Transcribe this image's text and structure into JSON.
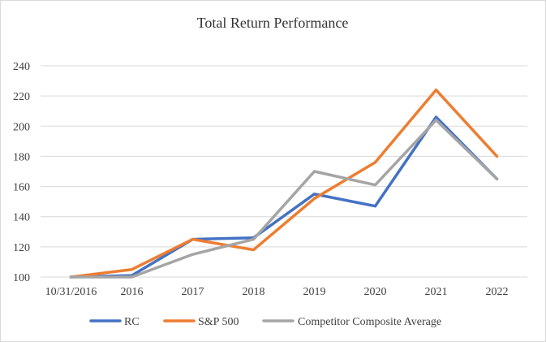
{
  "chart_data": {
    "type": "line",
    "title": "Total Return Performance",
    "xlabel": "",
    "ylabel": "",
    "categories": [
      "10/31/2016",
      "2016",
      "2017",
      "2018",
      "2019",
      "2020",
      "2021",
      "2022"
    ],
    "ylim": [
      100,
      240
    ],
    "yticks": [
      100,
      120,
      140,
      160,
      180,
      200,
      220,
      240
    ],
    "grid": true,
    "legend_position": "bottom",
    "series": [
      {
        "name": "RC",
        "color": "#4472c4",
        "values": [
          100,
          101,
          125,
          126,
          155,
          147,
          206,
          165
        ]
      },
      {
        "name": "S&P 500",
        "color": "#ed7d31",
        "values": [
          100,
          105,
          125,
          118,
          152,
          176,
          224,
          180
        ]
      },
      {
        "name": "Competitor Composite Average",
        "color": "#a5a5a5",
        "values": [
          100,
          100,
          115,
          125,
          170,
          161,
          204,
          165
        ]
      }
    ]
  }
}
